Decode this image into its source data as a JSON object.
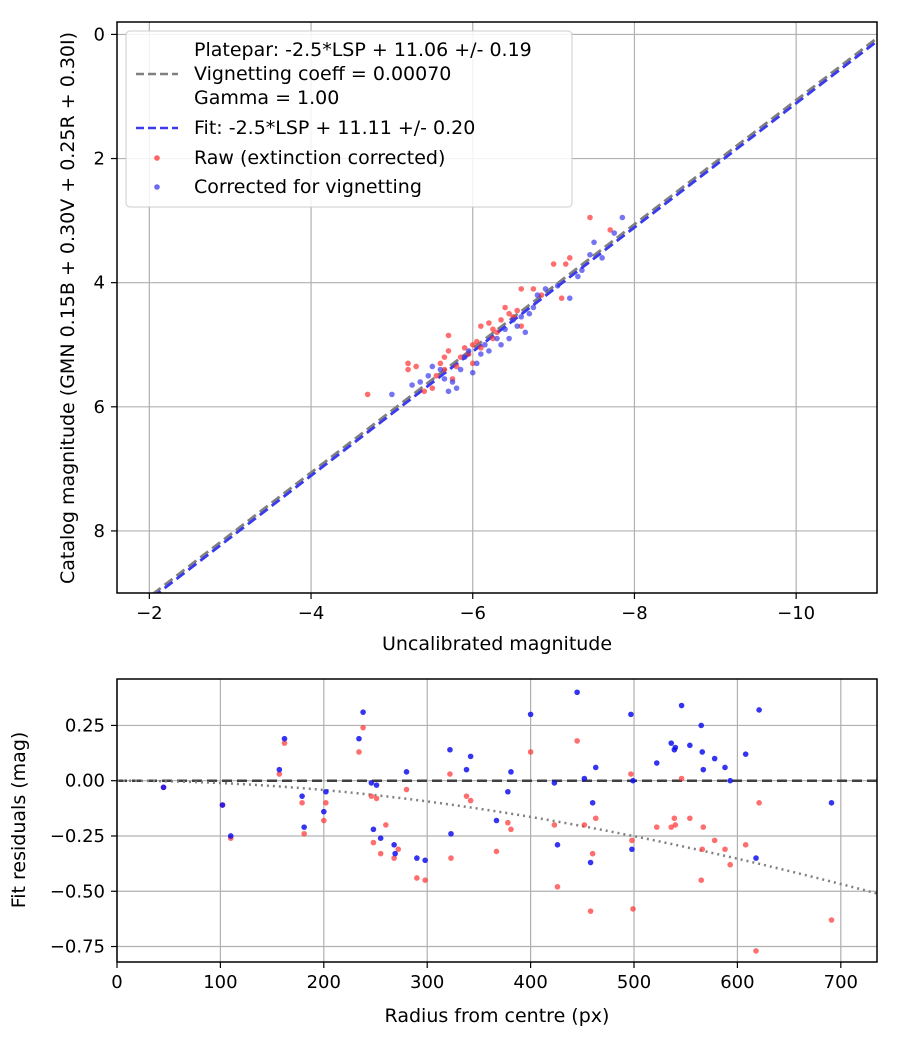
{
  "chart_data": [
    {
      "type": "scatter",
      "xlabel": "Uncalibrated magnitude",
      "ylabel": "Catalog magnitude (GMN 0.15B + 0.30V + 0.25R + 0.30I)",
      "xlim": [
        -1.6,
        -11.0
      ],
      "ylim": [
        9.0,
        -0.2
      ],
      "x_inverted": true,
      "y_inverted": true,
      "xticks": [
        -2,
        -4,
        -6,
        -8,
        -10
      ],
      "xtick_labels": [
        "−2",
        "−4",
        "−6",
        "−8",
        "−10"
      ],
      "yticks": [
        0,
        2,
        4,
        6,
        8
      ],
      "ytick_labels": [
        "0",
        "2",
        "4",
        "6",
        "8"
      ],
      "grid": true,
      "legend_position": "top-left",
      "legend": [
        {
          "label": "Platepar: -2.5*LSP + 11.06 +/- 0.19",
          "style": "none"
        },
        {
          "label": "Vignetting coeff = 0.00070",
          "style": "dashed-line",
          "color": "#808080"
        },
        {
          "label": "Gamma = 1.00",
          "style": "none"
        },
        {
          "label": "Fit: -2.5*LSP + 11.11 +/- 0.20",
          "style": "dashed-line",
          "color": "#3a3aee"
        },
        {
          "label": "Raw (extinction corrected)",
          "style": "marker",
          "color": "#ff3030"
        },
        {
          "label": "Corrected for vignetting",
          "style": "marker",
          "color": "#3a3aee"
        }
      ],
      "lines": [
        {
          "name": "Platepar",
          "slope": -2.5,
          "intercept": 11.06,
          "color": "#808080"
        },
        {
          "name": "Fit",
          "slope": -2.5,
          "intercept": 11.11,
          "color": "#3a3aee"
        }
      ],
      "series": [
        {
          "name": "Raw (extinction corrected)",
          "color": "#ff3030",
          "points": [
            [
              -4.7,
              5.8
            ],
            [
              -5.2,
              5.3
            ],
            [
              -5.2,
              5.4
            ],
            [
              -5.3,
              5.35
            ],
            [
              -5.4,
              5.75
            ],
            [
              -5.5,
              5.7
            ],
            [
              -5.55,
              5.5
            ],
            [
              -5.6,
              5.3
            ],
            [
              -5.65,
              5.4
            ],
            [
              -5.65,
              5.2
            ],
            [
              -5.7,
              4.85
            ],
            [
              -5.7,
              5.1
            ],
            [
              -5.75,
              5.55
            ],
            [
              -5.8,
              5.35
            ],
            [
              -5.85,
              5.2
            ],
            [
              -5.9,
              5.05
            ],
            [
              -5.95,
              5.15
            ],
            [
              -6.0,
              5.3
            ],
            [
              -6.0,
              5.0
            ],
            [
              -6.05,
              4.95
            ],
            [
              -6.1,
              5.05
            ],
            [
              -6.1,
              4.7
            ],
            [
              -6.2,
              4.65
            ],
            [
              -6.25,
              4.9
            ],
            [
              -6.25,
              4.75
            ],
            [
              -6.3,
              4.8
            ],
            [
              -6.35,
              4.6
            ],
            [
              -6.4,
              4.4
            ],
            [
              -6.45,
              4.5
            ],
            [
              -6.5,
              4.55
            ],
            [
              -6.55,
              4.45
            ],
            [
              -6.6,
              4.7
            ],
            [
              -6.6,
              4.1
            ],
            [
              -6.75,
              4.1
            ],
            [
              -6.85,
              4.2
            ],
            [
              -7.0,
              3.7
            ],
            [
              -7.1,
              4.25
            ],
            [
              -7.15,
              3.7
            ],
            [
              -7.2,
              3.6
            ],
            [
              -7.45,
              2.95
            ],
            [
              -7.7,
              3.15
            ]
          ]
        },
        {
          "name": "Corrected for vignetting",
          "color": "#3a3aee",
          "points": [
            [
              -5.0,
              5.8
            ],
            [
              -5.25,
              5.65
            ],
            [
              -5.35,
              5.6
            ],
            [
              -5.45,
              5.5
            ],
            [
              -5.5,
              5.35
            ],
            [
              -5.6,
              5.4
            ],
            [
              -5.65,
              5.55
            ],
            [
              -5.7,
              5.75
            ],
            [
              -5.75,
              5.6
            ],
            [
              -5.8,
              5.7
            ],
            [
              -5.85,
              5.4
            ],
            [
              -5.9,
              5.2
            ],
            [
              -5.95,
              5.1
            ],
            [
              -6.0,
              5.45
            ],
            [
              -6.05,
              5.3
            ],
            [
              -6.1,
              5.15
            ],
            [
              -6.15,
              5.0
            ],
            [
              -6.2,
              5.1
            ],
            [
              -6.3,
              4.9
            ],
            [
              -6.35,
              5.0
            ],
            [
              -6.4,
              4.75
            ],
            [
              -6.45,
              4.9
            ],
            [
              -6.5,
              4.6
            ],
            [
              -6.55,
              4.7
            ],
            [
              -6.6,
              4.55
            ],
            [
              -6.65,
              4.8
            ],
            [
              -6.7,
              4.5
            ],
            [
              -6.75,
              4.4
            ],
            [
              -6.8,
              4.2
            ],
            [
              -6.9,
              4.1
            ],
            [
              -7.05,
              4.05
            ],
            [
              -7.2,
              4.25
            ],
            [
              -7.3,
              3.9
            ],
            [
              -7.35,
              3.8
            ],
            [
              -7.45,
              3.55
            ],
            [
              -7.5,
              3.35
            ],
            [
              -7.6,
              3.6
            ],
            [
              -7.75,
              3.2
            ],
            [
              -7.85,
              2.95
            ]
          ]
        }
      ]
    },
    {
      "type": "scatter",
      "xlabel": "Radius from centre (px)",
      "ylabel": "Fit residuals (mag)",
      "xlim": [
        0,
        735
      ],
      "ylim": [
        -0.82,
        0.46
      ],
      "xticks": [
        0,
        100,
        200,
        300,
        400,
        500,
        600,
        700
      ],
      "xtick_labels": [
        "0",
        "100",
        "200",
        "300",
        "400",
        "500",
        "600",
        "700"
      ],
      "yticks": [
        0.25,
        0.0,
        -0.25,
        -0.5,
        -0.75
      ],
      "ytick_labels": [
        "0.25",
        "0.00",
        "−0.25",
        "−0.50",
        "−0.75"
      ],
      "grid": true,
      "zero_line": {
        "y": 0.0,
        "color": "#404040",
        "style": "dashed"
      },
      "vignetting_curve": {
        "coeff": 0.0007,
        "color": "#808080",
        "style": "dotted"
      },
      "series": [
        {
          "name": "Raw",
          "color": "#ff3030",
          "points": [
            [
              45,
              -0.03
            ],
            [
              102,
              -0.11
            ],
            [
              110,
              -0.26
            ],
            [
              157,
              0.03
            ],
            [
              162,
              0.17
            ],
            [
              179,
              -0.1
            ],
            [
              181,
              -0.24
            ],
            [
              200,
              -0.18
            ],
            [
              202,
              -0.1
            ],
            [
              234,
              0.13
            ],
            [
              238,
              0.24
            ],
            [
              246,
              -0.07
            ],
            [
              248,
              -0.28
            ],
            [
              251,
              -0.08
            ],
            [
              255,
              -0.33
            ],
            [
              260,
              -0.2
            ],
            [
              268,
              -0.35
            ],
            [
              272,
              -0.31
            ],
            [
              280,
              -0.04
            ],
            [
              290,
              -0.44
            ],
            [
              298,
              -0.45
            ],
            [
              322,
              0.03
            ],
            [
              323,
              -0.35
            ],
            [
              338,
              -0.07
            ],
            [
              342,
              -0.09
            ],
            [
              367,
              -0.32
            ],
            [
              378,
              -0.19
            ],
            [
              381,
              -0.22
            ],
            [
              400,
              0.13
            ],
            [
              423,
              -0.2
            ],
            [
              426,
              -0.48
            ],
            [
              445,
              0.18
            ],
            [
              452,
              -0.2
            ],
            [
              458,
              -0.59
            ],
            [
              460,
              -0.33
            ],
            [
              463,
              -0.17
            ],
            [
              497,
              0.03
            ],
            [
              498,
              -0.27
            ],
            [
              499,
              -0.58
            ],
            [
              522,
              -0.21
            ],
            [
              536,
              -0.21
            ],
            [
              539,
              -0.17
            ],
            [
              540,
              -0.2
            ],
            [
              546,
              0.01
            ],
            [
              554,
              -0.17
            ],
            [
              565,
              -0.45
            ],
            [
              566,
              -0.31
            ],
            [
              567,
              -0.21
            ],
            [
              578,
              -0.27
            ],
            [
              588,
              -0.31
            ],
            [
              593,
              -0.38
            ],
            [
              608,
              -0.29
            ],
            [
              618,
              -0.77
            ],
            [
              621,
              -0.1
            ],
            [
              691,
              -0.63
            ]
          ]
        },
        {
          "name": "Corrected for vignetting",
          "color": "#1010ee",
          "points": [
            [
              45,
              -0.03
            ],
            [
              102,
              -0.11
            ],
            [
              110,
              -0.25
            ],
            [
              157,
              0.05
            ],
            [
              162,
              0.19
            ],
            [
              179,
              -0.07
            ],
            [
              181,
              -0.21
            ],
            [
              200,
              -0.14
            ],
            [
              202,
              -0.05
            ],
            [
              234,
              0.19
            ],
            [
              238,
              0.31
            ],
            [
              246,
              -0.01
            ],
            [
              248,
              -0.22
            ],
            [
              251,
              -0.02
            ],
            [
              255,
              -0.26
            ],
            [
              268,
              -0.29
            ],
            [
              269,
              -0.33
            ],
            [
              280,
              0.04
            ],
            [
              290,
              -0.35
            ],
            [
              298,
              -0.36
            ],
            [
              322,
              0.14
            ],
            [
              323,
              -0.24
            ],
            [
              338,
              0.05
            ],
            [
              342,
              0.11
            ],
            [
              367,
              -0.18
            ],
            [
              378,
              -0.05
            ],
            [
              381,
              0.04
            ],
            [
              400,
              0.3
            ],
            [
              423,
              -0.01
            ],
            [
              426,
              -0.29
            ],
            [
              445,
              0.4
            ],
            [
              452,
              0.01
            ],
            [
              458,
              -0.37
            ],
            [
              460,
              -0.1
            ],
            [
              463,
              0.06
            ],
            [
              497,
              0.3
            ],
            [
              498,
              -0.31
            ],
            [
              499,
              0.0
            ],
            [
              522,
              0.08
            ],
            [
              536,
              0.17
            ],
            [
              539,
              0.14
            ],
            [
              540,
              0.15
            ],
            [
              546,
              0.34
            ],
            [
              554,
              0.16
            ],
            [
              565,
              0.25
            ],
            [
              566,
              0.13
            ],
            [
              567,
              0.05
            ],
            [
              578,
              0.1
            ],
            [
              588,
              0.06
            ],
            [
              593,
              0.0
            ],
            [
              608,
              0.12
            ],
            [
              618,
              -0.35
            ],
            [
              621,
              0.32
            ],
            [
              691,
              -0.1
            ]
          ]
        }
      ]
    }
  ]
}
